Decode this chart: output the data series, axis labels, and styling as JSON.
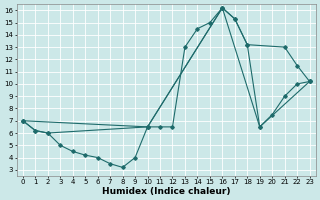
{
  "xlabel": "Humidex (Indice chaleur)",
  "bg_color": "#cce8e8",
  "grid_color": "#ffffff",
  "line_color": "#1e6b6b",
  "xlim": [
    -0.5,
    23.5
  ],
  "ylim": [
    2.5,
    16.5
  ],
  "xtick_labels": [
    "0",
    "1",
    "2",
    "3",
    "4",
    "5",
    "6",
    "7",
    "8",
    "9",
    "10",
    "11",
    "12",
    "13",
    "14",
    "15",
    "16",
    "17",
    "18",
    "19",
    "20",
    "21",
    "22",
    "23"
  ],
  "xticks": [
    0,
    1,
    2,
    3,
    4,
    5,
    6,
    7,
    8,
    9,
    10,
    11,
    12,
    13,
    14,
    15,
    16,
    17,
    18,
    19,
    20,
    21,
    22,
    23
  ],
  "yticks": [
    3,
    4,
    5,
    6,
    7,
    8,
    9,
    10,
    11,
    12,
    13,
    14,
    15,
    16
  ],
  "series1_x": [
    0,
    1,
    2,
    3,
    4,
    5,
    6,
    7,
    8,
    9,
    10,
    11,
    12,
    13,
    14,
    15,
    16,
    17,
    18,
    19,
    20,
    21,
    22,
    23
  ],
  "series1_y": [
    7.0,
    6.2,
    6.0,
    5.0,
    4.5,
    4.2,
    4.0,
    3.5,
    3.2,
    4.0,
    6.5,
    6.5,
    6.5,
    13.0,
    14.5,
    15.0,
    16.2,
    15.3,
    13.2,
    6.5,
    7.5,
    9.0,
    10.0,
    10.2
  ],
  "series2_x": [
    0,
    1,
    2,
    10,
    16,
    17,
    18,
    21,
    22,
    23
  ],
  "series2_y": [
    7.0,
    6.2,
    6.0,
    6.5,
    16.2,
    15.3,
    13.2,
    13.0,
    11.5,
    10.2
  ],
  "series3_x": [
    0,
    10,
    16,
    19,
    23
  ],
  "series3_y": [
    7.0,
    6.5,
    16.2,
    6.5,
    10.2
  ]
}
